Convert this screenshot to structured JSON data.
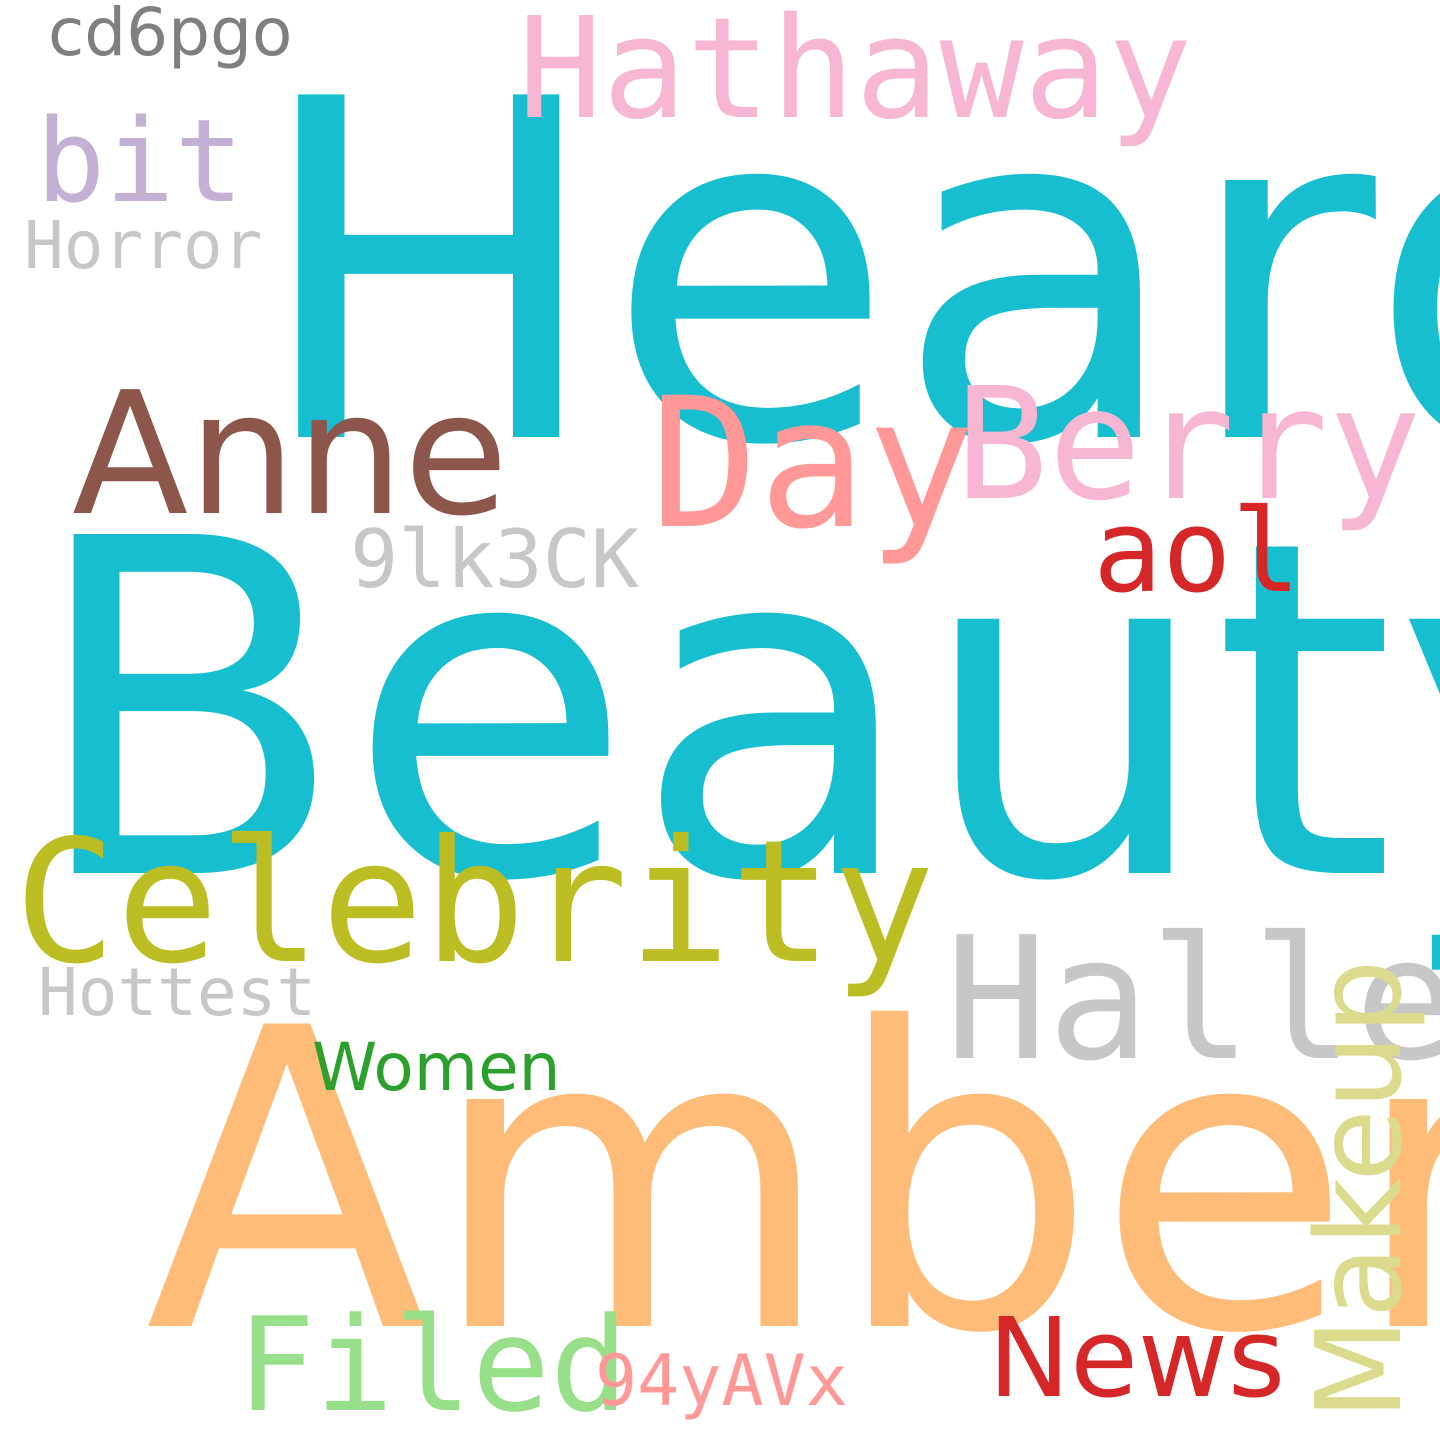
{
  "words": {
    "heard": {
      "text": "Heard",
      "color": "#17BECF"
    },
    "beauty": {
      "text": "Beauty",
      "color": "#17BECF"
    },
    "amber": {
      "text": "Amber",
      "color": "#FFBB78"
    },
    "hathaway": {
      "text": "Hathaway",
      "color": "#F7B6D2"
    },
    "celebrity": {
      "text": "Celebrity",
      "color": "#BCBD22"
    },
    "anne": {
      "text": "Anne",
      "color": "#8C564B"
    },
    "day": {
      "text": "Day",
      "color": "#FF9896"
    },
    "berry": {
      "text": "Berry",
      "color": "#F7B6D2"
    },
    "halle": {
      "text": "Halle",
      "color": "#C7C7C7"
    },
    "filed": {
      "text": "Filed",
      "color": "#98DF8A"
    },
    "news": {
      "text": "News",
      "color": "#D62728"
    },
    "aol": {
      "text": "aol",
      "color": "#D62728"
    },
    "bit": {
      "text": "bit",
      "color": "#C5B0D5"
    },
    "makeup": {
      "text": "Makeup",
      "color": "#DBDB8D"
    },
    "9lk3ck": {
      "text": "9lk3CK",
      "color": "#C7C7C7"
    },
    "94yavx": {
      "text": "94yAVx",
      "color": "#FF9896"
    },
    "women": {
      "text": "Women",
      "color": "#2CA02C"
    },
    "hottest": {
      "text": "Hottest",
      "color": "#C7C7C7"
    },
    "horror": {
      "text": "Horror",
      "color": "#C7C7C7"
    },
    "cd6pgo": {
      "text": "cd6pgo",
      "color": "#7F7F7F"
    }
  }
}
